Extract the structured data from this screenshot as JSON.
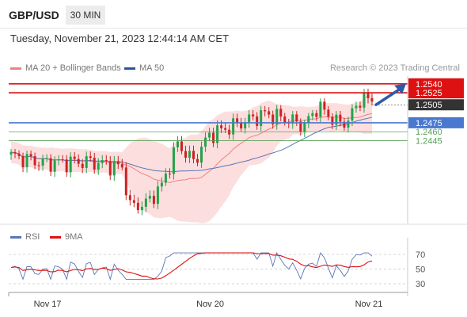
{
  "header": {
    "symbol": "GBP/USD",
    "timeframe": "30 MIN",
    "datetime": "Tuesday, November 21, 2023 12:44:14 AM CET"
  },
  "legend": {
    "ma20": "MA 20 + Bollinger Bands",
    "ma50": "MA 50",
    "credit": "Research © 2023 Trading Central"
  },
  "rsi_legend": {
    "rsi": "RSI",
    "ma9": "9MA"
  },
  "colors": {
    "up": "#22a34a",
    "down": "#cc2222",
    "band": "#fbd6d6",
    "ma20": "#f08080",
    "ma50": "#5b75b5",
    "resistance": "#dd1111",
    "pivot": "#4a78d0",
    "support": "#5aa05a",
    "arrow": "#2a5aa8",
    "price": "#333333"
  },
  "chart_data": [
    {
      "type": "candlestick",
      "series": [
        {
          "name": "MA 20 + Bollinger Bands"
        },
        {
          "name": "MA 50"
        }
      ],
      "levels": [
        {
          "value": 1.254,
          "label": "1.2540",
          "role": "resistance"
        },
        {
          "value": 1.2525,
          "label": "1.2525",
          "role": "resistance"
        },
        {
          "value": 1.2505,
          "label": "1.2505",
          "role": "price"
        },
        {
          "value": 1.2475,
          "label": "1.2475",
          "role": "pivot"
        },
        {
          "value": 1.246,
          "label": "1.2460",
          "role": "support"
        },
        {
          "value": 1.2445,
          "label": "1.2445",
          "role": "support"
        }
      ],
      "price_range": [
        1.232,
        1.2545
      ],
      "x_ticks": [
        {
          "label": "Nov 17",
          "index": 10
        },
        {
          "label": "Nov 20",
          "index": 51
        },
        {
          "label": "Nov 21",
          "index": 92
        }
      ],
      "candles_count": 92,
      "target_arrow": {
        "from": 1.2505,
        "to": 1.254
      }
    },
    {
      "type": "line",
      "series": [
        {
          "name": "RSI"
        },
        {
          "name": "9MA"
        }
      ],
      "y_ticks": [
        70,
        50,
        30
      ],
      "ylim": [
        25,
        80
      ]
    }
  ]
}
